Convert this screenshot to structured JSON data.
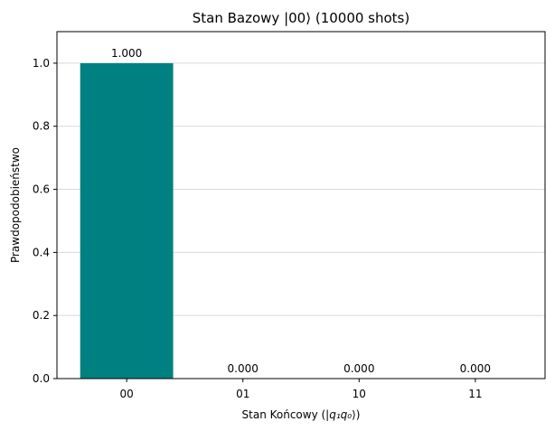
{
  "chart_data": {
    "type": "bar",
    "title": "Stan Bazowy |00⟩ (10000 shots)",
    "xlabel_text": "Stan Końcowy (|",
    "xlabel_math": "q₁q₀",
    "xlabel_close": "⟩)",
    "ylabel": "Prawdopodobieństwo",
    "categories": [
      "00",
      "01",
      "10",
      "11"
    ],
    "values": [
      1.0,
      0.0,
      0.0,
      0.0
    ],
    "data_labels": [
      "1.000",
      "0.000",
      "0.000",
      "0.000"
    ],
    "ylim": [
      0,
      1.1
    ],
    "yticks": [
      0.0,
      0.2,
      0.4,
      0.6,
      0.8,
      1.0
    ],
    "ytick_labels": [
      "0.0",
      "0.2",
      "0.4",
      "0.6",
      "0.8",
      "1.0"
    ],
    "grid": "horizontal",
    "legend": "none",
    "bar_color": "#008080"
  }
}
